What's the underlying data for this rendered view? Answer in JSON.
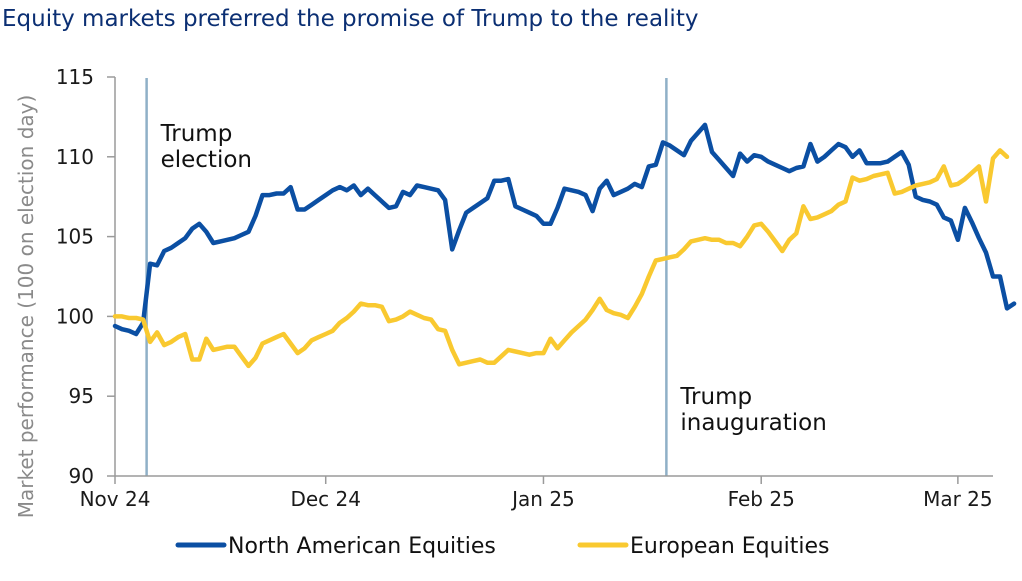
{
  "chart_data": {
    "type": "line",
    "title": "Equity markets preferred the promise of Trump to the reality",
    "xlabel": "",
    "ylabel": "Market performance (100 on election day)",
    "ylim": [
      90,
      115
    ],
    "yticks": [
      90,
      95,
      100,
      105,
      110,
      115
    ],
    "x_range_days": [
      0,
      125
    ],
    "xticks": [
      {
        "label": "Nov 24",
        "day": 0
      },
      {
        "label": "Dec 24",
        "day": 30
      },
      {
        "label": "Jan 25",
        "day": 61
      },
      {
        "label": "Feb 25",
        "day": 92
      },
      {
        "label": "Mar 25",
        "day": 120
      }
    ],
    "vlines": [
      {
        "day": 4.5,
        "label_lines": [
          "Trump",
          "election"
        ],
        "label_y": 111
      },
      {
        "day": 78.5,
        "label_lines": [
          "Trump",
          "inauguration"
        ],
        "label_y": 94.5
      }
    ],
    "legend": {
      "position": "bottom"
    },
    "colors": {
      "north_america": "#0b4fa3",
      "europe": "#f9c930",
      "vline": "#8fb0c7",
      "title": "#0b2f73"
    },
    "series": [
      {
        "name": "North American Equities",
        "color": "#0b4fa3",
        "points": [
          [
            0,
            99.4
          ],
          [
            1,
            99.2
          ],
          [
            2,
            99.1
          ],
          [
            3,
            98.9
          ],
          [
            4,
            99.6
          ],
          [
            5,
            103.3
          ],
          [
            6,
            103.2
          ],
          [
            7,
            104.1
          ],
          [
            8,
            104.3
          ],
          [
            9,
            104.6
          ],
          [
            10,
            104.9
          ],
          [
            11,
            105.5
          ],
          [
            12,
            105.8
          ],
          [
            13,
            105.3
          ],
          [
            14,
            104.6
          ],
          [
            15,
            104.7
          ],
          [
            16,
            104.8
          ],
          [
            17,
            104.9
          ],
          [
            18,
            105.1
          ],
          [
            19,
            105.3
          ],
          [
            20,
            106.3
          ],
          [
            21,
            107.6
          ],
          [
            22,
            107.6
          ],
          [
            23,
            107.7
          ],
          [
            24,
            107.7
          ],
          [
            25,
            108.1
          ],
          [
            26,
            106.7
          ],
          [
            27,
            106.7
          ],
          [
            28,
            107.0
          ],
          [
            29,
            107.3
          ],
          [
            30,
            107.6
          ],
          [
            31,
            107.9
          ],
          [
            32,
            108.1
          ],
          [
            33,
            107.9
          ],
          [
            34,
            108.2
          ],
          [
            35,
            107.6
          ],
          [
            36,
            108.0
          ],
          [
            37,
            107.6
          ],
          [
            38,
            107.2
          ],
          [
            39,
            106.8
          ],
          [
            40,
            106.9
          ],
          [
            41,
            107.8
          ],
          [
            42,
            107.6
          ],
          [
            43,
            108.2
          ],
          [
            44,
            108.1
          ],
          [
            45,
            108.0
          ],
          [
            46,
            107.9
          ],
          [
            47,
            107.3
          ],
          [
            48,
            104.2
          ],
          [
            49,
            105.4
          ],
          [
            50,
            106.5
          ],
          [
            51,
            106.8
          ],
          [
            52,
            107.1
          ],
          [
            53,
            107.4
          ],
          [
            54,
            108.5
          ],
          [
            55,
            108.5
          ],
          [
            56,
            108.6
          ],
          [
            57,
            106.9
          ],
          [
            58,
            106.7
          ],
          [
            59,
            106.5
          ],
          [
            60,
            106.3
          ],
          [
            61,
            105.8
          ],
          [
            62,
            105.8
          ],
          [
            63,
            106.8
          ],
          [
            64,
            108.0
          ],
          [
            65,
            107.9
          ],
          [
            66,
            107.8
          ],
          [
            67,
            107.6
          ],
          [
            68,
            106.6
          ],
          [
            69,
            108.0
          ],
          [
            70,
            108.5
          ],
          [
            71,
            107.6
          ],
          [
            72,
            107.8
          ],
          [
            73,
            108.0
          ],
          [
            74,
            108.3
          ],
          [
            75,
            108.1
          ],
          [
            76,
            109.4
          ],
          [
            77,
            109.5
          ],
          [
            78,
            110.9
          ],
          [
            79,
            110.7
          ],
          [
            80,
            110.4
          ],
          [
            81,
            110.1
          ],
          [
            82,
            111.0
          ],
          [
            83,
            111.5
          ],
          [
            84,
            112.0
          ],
          [
            85,
            110.3
          ],
          [
            86,
            109.8
          ],
          [
            87,
            109.3
          ],
          [
            88,
            108.8
          ],
          [
            89,
            110.2
          ],
          [
            90,
            109.7
          ],
          [
            91,
            110.1
          ],
          [
            92,
            110.0
          ],
          [
            93,
            109.7
          ],
          [
            94,
            109.5
          ],
          [
            95,
            109.3
          ],
          [
            96,
            109.1
          ],
          [
            97,
            109.3
          ],
          [
            98,
            109.4
          ],
          [
            99,
            110.8
          ],
          [
            100,
            109.7
          ],
          [
            101,
            110.0
          ],
          [
            102,
            110.4
          ],
          [
            103,
            110.8
          ],
          [
            104,
            110.6
          ],
          [
            105,
            110.0
          ],
          [
            106,
            110.4
          ],
          [
            107,
            109.6
          ],
          [
            108,
            109.6
          ],
          [
            109,
            109.6
          ],
          [
            110,
            109.7
          ],
          [
            111,
            110.0
          ],
          [
            112,
            110.3
          ],
          [
            113,
            109.5
          ],
          [
            114,
            107.5
          ],
          [
            115,
            107.3
          ],
          [
            116,
            107.2
          ],
          [
            117,
            107.0
          ],
          [
            118,
            106.2
          ],
          [
            119,
            106.0
          ],
          [
            120,
            104.8
          ],
          [
            121,
            106.8
          ],
          [
            122,
            105.9
          ],
          [
            123,
            104.9
          ],
          [
            124,
            104.0
          ],
          [
            125,
            102.5
          ],
          [
            126,
            102.5
          ],
          [
            127,
            100.5
          ],
          [
            128,
            100.8
          ]
        ]
      },
      {
        "name": "European Equities",
        "color": "#f9c930",
        "points": [
          [
            0,
            100.0
          ],
          [
            1,
            100.0
          ],
          [
            2,
            99.9
          ],
          [
            3,
            99.9
          ],
          [
            4,
            99.8
          ],
          [
            5,
            98.4
          ],
          [
            6,
            99.0
          ],
          [
            7,
            98.2
          ],
          [
            8,
            98.4
          ],
          [
            9,
            98.7
          ],
          [
            10,
            98.9
          ],
          [
            11,
            97.3
          ],
          [
            12,
            97.3
          ],
          [
            13,
            98.6
          ],
          [
            14,
            97.9
          ],
          [
            15,
            98.0
          ],
          [
            16,
            98.1
          ],
          [
            17,
            98.1
          ],
          [
            18,
            97.5
          ],
          [
            19,
            96.9
          ],
          [
            20,
            97.4
          ],
          [
            21,
            98.3
          ],
          [
            22,
            98.5
          ],
          [
            23,
            98.7
          ],
          [
            24,
            98.9
          ],
          [
            25,
            98.3
          ],
          [
            26,
            97.7
          ],
          [
            27,
            98.0
          ],
          [
            28,
            98.5
          ],
          [
            29,
            98.7
          ],
          [
            30,
            98.9
          ],
          [
            31,
            99.1
          ],
          [
            32,
            99.6
          ],
          [
            33,
            99.9
          ],
          [
            34,
            100.3
          ],
          [
            35,
            100.8
          ],
          [
            36,
            100.7
          ],
          [
            37,
            100.7
          ],
          [
            38,
            100.6
          ],
          [
            39,
            99.7
          ],
          [
            40,
            99.8
          ],
          [
            41,
            100.0
          ],
          [
            42,
            100.3
          ],
          [
            43,
            100.1
          ],
          [
            44,
            99.9
          ],
          [
            45,
            99.8
          ],
          [
            46,
            99.2
          ],
          [
            47,
            99.1
          ],
          [
            48,
            97.9
          ],
          [
            49,
            97.0
          ],
          [
            50,
            97.1
          ],
          [
            51,
            97.2
          ],
          [
            52,
            97.3
          ],
          [
            53,
            97.1
          ],
          [
            54,
            97.1
          ],
          [
            55,
            97.5
          ],
          [
            56,
            97.9
          ],
          [
            57,
            97.8
          ],
          [
            58,
            97.7
          ],
          [
            59,
            97.6
          ],
          [
            60,
            97.7
          ],
          [
            61,
            97.7
          ],
          [
            62,
            98.6
          ],
          [
            63,
            98.0
          ],
          [
            64,
            98.5
          ],
          [
            65,
            99.0
          ],
          [
            66,
            99.4
          ],
          [
            67,
            99.8
          ],
          [
            68,
            100.4
          ],
          [
            69,
            101.1
          ],
          [
            70,
            100.4
          ],
          [
            71,
            100.2
          ],
          [
            72,
            100.1
          ],
          [
            73,
            99.9
          ],
          [
            74,
            100.6
          ],
          [
            75,
            101.4
          ],
          [
            76,
            102.5
          ],
          [
            77,
            103.5
          ],
          [
            78,
            103.6
          ],
          [
            79,
            103.7
          ],
          [
            80,
            103.8
          ],
          [
            81,
            104.2
          ],
          [
            82,
            104.7
          ],
          [
            83,
            104.8
          ],
          [
            84,
            104.9
          ],
          [
            85,
            104.8
          ],
          [
            86,
            104.8
          ],
          [
            87,
            104.6
          ],
          [
            88,
            104.6
          ],
          [
            89,
            104.4
          ],
          [
            90,
            105.0
          ],
          [
            91,
            105.7
          ],
          [
            92,
            105.8
          ],
          [
            93,
            105.3
          ],
          [
            94,
            104.7
          ],
          [
            95,
            104.1
          ],
          [
            96,
            104.8
          ],
          [
            97,
            105.2
          ],
          [
            98,
            106.9
          ],
          [
            99,
            106.1
          ],
          [
            100,
            106.2
          ],
          [
            101,
            106.4
          ],
          [
            102,
            106.6
          ],
          [
            103,
            107.0
          ],
          [
            104,
            107.2
          ],
          [
            105,
            108.7
          ],
          [
            106,
            108.5
          ],
          [
            107,
            108.6
          ],
          [
            108,
            108.8
          ],
          [
            109,
            108.9
          ],
          [
            110,
            109.0
          ],
          [
            111,
            107.7
          ],
          [
            112,
            107.8
          ],
          [
            113,
            108.0
          ],
          [
            114,
            108.2
          ],
          [
            115,
            108.3
          ],
          [
            116,
            108.4
          ],
          [
            117,
            108.6
          ],
          [
            118,
            109.4
          ],
          [
            119,
            108.2
          ],
          [
            120,
            108.3
          ],
          [
            121,
            108.6
          ],
          [
            122,
            109.0
          ],
          [
            123,
            109.4
          ],
          [
            124,
            107.2
          ],
          [
            125,
            109.9
          ],
          [
            126,
            110.4
          ],
          [
            127,
            110.0
          ]
        ]
      }
    ]
  }
}
